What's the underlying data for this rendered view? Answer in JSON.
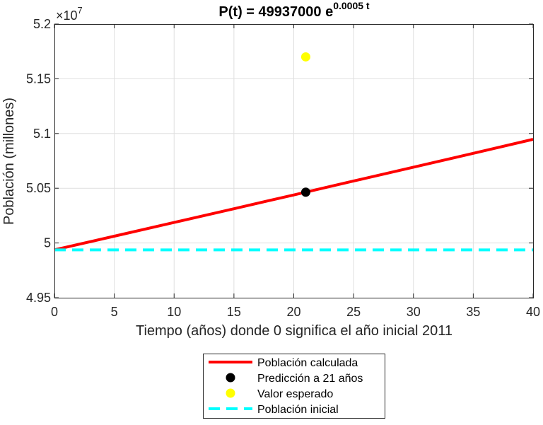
{
  "chart_data": {
    "type": "line",
    "title_prefix": "P(t) = 49937000 e",
    "title_exponent": "0.0005 t",
    "xlabel": "Tiempo (años) donde 0 significa el año inicial 2011",
    "ylabel": "Población (millones)",
    "y_exponent_base": "×10",
    "y_exponent_power": "7",
    "xlim": [
      0,
      40
    ],
    "ylim": [
      49500000,
      52000000
    ],
    "xticks": [
      0,
      5,
      10,
      15,
      20,
      25,
      30,
      35,
      40
    ],
    "xtick_labels": [
      "0",
      "5",
      "10",
      "15",
      "20",
      "25",
      "30",
      "35",
      "40"
    ],
    "yticks": [
      49500000,
      50000000,
      50500000,
      51000000,
      51500000,
      52000000
    ],
    "ytick_labels": [
      "4.95",
      "5",
      "5.05",
      "5.1",
      "5.15",
      "5.2"
    ],
    "grid": true,
    "legend_position": "bottom",
    "series": [
      {
        "name": "Población calculada",
        "kind": "line",
        "color": "#ff0000",
        "x": [
          0,
          5,
          10,
          15,
          20,
          25,
          30,
          35,
          40
        ],
        "y": [
          49937000,
          50062000,
          50187500,
          50313000,
          50439000,
          50566000,
          50692000,
          50819000,
          50947000
        ]
      },
      {
        "name": "Predicción a 21 años",
        "kind": "point",
        "color": "#000000",
        "x": [
          21
        ],
        "y": [
          50464000
        ]
      },
      {
        "name": "Valor esperado",
        "kind": "point",
        "color": "#ffff00",
        "x": [
          21
        ],
        "y": [
          51700000
        ]
      },
      {
        "name": "Población inicial",
        "kind": "dashed",
        "color": "#00ffff",
        "x": [
          0,
          40
        ],
        "y": [
          49937000,
          49937000
        ]
      }
    ]
  }
}
